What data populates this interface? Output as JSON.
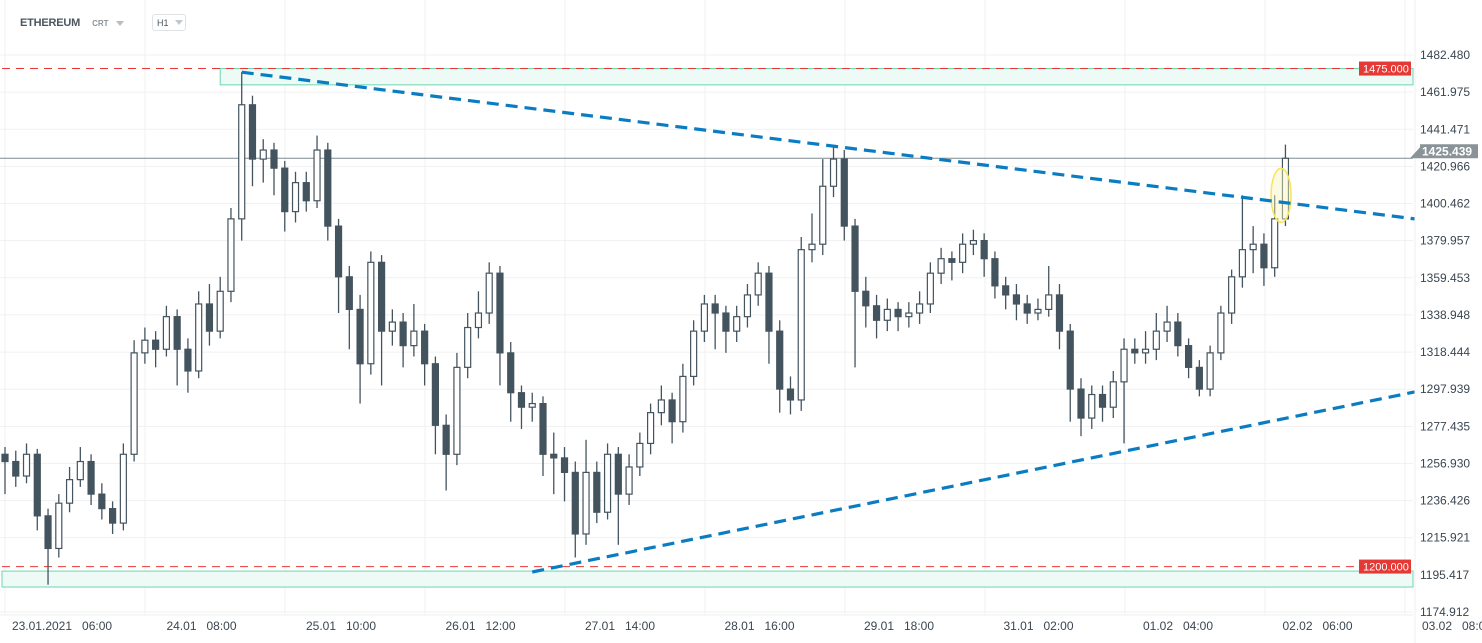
{
  "header": {
    "symbol": "ETHEREUM",
    "market": "CRT",
    "timeframe": "H1"
  },
  "colors": {
    "bull_fill": "#ffffff",
    "candle": "#44545f",
    "trend": "#0a7dc2",
    "level": "#e53935",
    "zone_stroke": "#6fd6b2",
    "zone_fill": "#eefaf5",
    "price_line": "#7f8a91",
    "highlight": "#f5e65a"
  },
  "chart_data": {
    "type": "candlestick",
    "instrument": "ETHEREUM",
    "timeframe": "H1",
    "ylim": [
      1174.912,
      1490
    ],
    "grid": true,
    "yticks": [
      "1482.480",
      "1461.975",
      "1441.471",
      "1420.966",
      "1400.462",
      "1379.957",
      "1359.453",
      "1338.948",
      "1318.444",
      "1297.939",
      "1277.435",
      "1256.930",
      "1236.426",
      "1215.921",
      "1195.417",
      "1174.912"
    ],
    "xticks": [
      "23.01.2021  06:00",
      "24.01  08:00",
      "25.01  10:00",
      "26.01  12:00",
      "27.01  14:00",
      "28.01  16:00",
      "29.01  18:00",
      "31.01  02:00",
      "01.02  04:00",
      "02.02  06:00",
      "03.02  08:00"
    ],
    "candles": [
      [
        1262,
        1266,
        1240,
        1258
      ],
      [
        1258,
        1264,
        1244,
        1250
      ],
      [
        1250,
        1268,
        1246,
        1262
      ],
      [
        1262,
        1265,
        1220,
        1228
      ],
      [
        1228,
        1232,
        1190,
        1210
      ],
      [
        1210,
        1240,
        1205,
        1235
      ],
      [
        1235,
        1255,
        1230,
        1248
      ],
      [
        1248,
        1266,
        1244,
        1258
      ],
      [
        1258,
        1262,
        1234,
        1240
      ],
      [
        1240,
        1246,
        1226,
        1232
      ],
      [
        1232,
        1236,
        1218,
        1224
      ],
      [
        1224,
        1268,
        1220,
        1262
      ],
      [
        1262,
        1325,
        1258,
        1318
      ],
      [
        1318,
        1332,
        1312,
        1325
      ],
      [
        1325,
        1330,
        1310,
        1320
      ],
      [
        1320,
        1344,
        1316,
        1338
      ],
      [
        1338,
        1342,
        1300,
        1320
      ],
      [
        1320,
        1326,
        1296,
        1308
      ],
      [
        1308,
        1352,
        1304,
        1345
      ],
      [
        1345,
        1356,
        1322,
        1330
      ],
      [
        1330,
        1360,
        1326,
        1352
      ],
      [
        1352,
        1398,
        1346,
        1392
      ],
      [
        1392,
        1473,
        1380,
        1455
      ],
      [
        1455,
        1460,
        1410,
        1425
      ],
      [
        1425,
        1436,
        1412,
        1430
      ],
      [
        1430,
        1434,
        1405,
        1420
      ],
      [
        1420,
        1424,
        1385,
        1396
      ],
      [
        1396,
        1418,
        1390,
        1412
      ],
      [
        1412,
        1418,
        1396,
        1402
      ],
      [
        1402,
        1438,
        1398,
        1430
      ],
      [
        1430,
        1434,
        1380,
        1388
      ],
      [
        1388,
        1392,
        1340,
        1360
      ],
      [
        1360,
        1366,
        1320,
        1342
      ],
      [
        1342,
        1350,
        1290,
        1312
      ],
      [
        1312,
        1374,
        1306,
        1368
      ],
      [
        1368,
        1372,
        1300,
        1330
      ],
      [
        1330,
        1342,
        1322,
        1335
      ],
      [
        1335,
        1340,
        1310,
        1322
      ],
      [
        1322,
        1345,
        1316,
        1330
      ],
      [
        1330,
        1334,
        1300,
        1312
      ],
      [
        1312,
        1316,
        1262,
        1278
      ],
      [
        1278,
        1284,
        1242,
        1262
      ],
      [
        1262,
        1318,
        1256,
        1310
      ],
      [
        1310,
        1340,
        1304,
        1332
      ],
      [
        1332,
        1352,
        1326,
        1340
      ],
      [
        1340,
        1368,
        1334,
        1362
      ],
      [
        1362,
        1366,
        1300,
        1318
      ],
      [
        1318,
        1324,
        1280,
        1296
      ],
      [
        1296,
        1300,
        1276,
        1288
      ],
      [
        1288,
        1296,
        1280,
        1290
      ],
      [
        1290,
        1294,
        1250,
        1262
      ],
      [
        1262,
        1274,
        1240,
        1260
      ],
      [
        1260,
        1266,
        1236,
        1252
      ],
      [
        1252,
        1258,
        1205,
        1218
      ],
      [
        1218,
        1270,
        1212,
        1252
      ],
      [
        1252,
        1258,
        1224,
        1230
      ],
      [
        1230,
        1268,
        1226,
        1262
      ],
      [
        1262,
        1266,
        1212,
        1240
      ],
      [
        1240,
        1262,
        1234,
        1255
      ],
      [
        1255,
        1274,
        1250,
        1268
      ],
      [
        1268,
        1290,
        1262,
        1285
      ],
      [
        1285,
        1300,
        1278,
        1292
      ],
      [
        1292,
        1296,
        1268,
        1280
      ],
      [
        1280,
        1312,
        1274,
        1305
      ],
      [
        1305,
        1336,
        1300,
        1330
      ],
      [
        1330,
        1350,
        1324,
        1345
      ],
      [
        1345,
        1350,
        1320,
        1340
      ],
      [
        1340,
        1344,
        1318,
        1330
      ],
      [
        1330,
        1344,
        1324,
        1338
      ],
      [
        1338,
        1356,
        1332,
        1350
      ],
      [
        1350,
        1368,
        1344,
        1362
      ],
      [
        1362,
        1366,
        1312,
        1330
      ],
      [
        1330,
        1336,
        1285,
        1298
      ],
      [
        1298,
        1305,
        1284,
        1292
      ],
      [
        1292,
        1382,
        1286,
        1375
      ],
      [
        1375,
        1395,
        1368,
        1378
      ],
      [
        1378,
        1425,
        1372,
        1410
      ],
      [
        1410,
        1433,
        1404,
        1425
      ],
      [
        1425,
        1430,
        1380,
        1388
      ],
      [
        1388,
        1392,
        1310,
        1352
      ],
      [
        1352,
        1360,
        1332,
        1344
      ],
      [
        1344,
        1350,
        1326,
        1336
      ],
      [
        1336,
        1348,
        1330,
        1342
      ],
      [
        1342,
        1346,
        1330,
        1338
      ],
      [
        1338,
        1346,
        1332,
        1340
      ],
      [
        1340,
        1352,
        1334,
        1345
      ],
      [
        1345,
        1368,
        1340,
        1362
      ],
      [
        1362,
        1376,
        1356,
        1370
      ],
      [
        1370,
        1374,
        1358,
        1368
      ],
      [
        1368,
        1384,
        1362,
        1378
      ],
      [
        1378,
        1386,
        1372,
        1380
      ],
      [
        1380,
        1384,
        1360,
        1370
      ],
      [
        1370,
        1374,
        1348,
        1355
      ],
      [
        1355,
        1360,
        1342,
        1350
      ],
      [
        1350,
        1356,
        1336,
        1345
      ],
      [
        1345,
        1350,
        1334,
        1340
      ],
      [
        1340,
        1348,
        1336,
        1342
      ],
      [
        1342,
        1366,
        1338,
        1350
      ],
      [
        1350,
        1356,
        1320,
        1330
      ],
      [
        1330,
        1334,
        1280,
        1298
      ],
      [
        1298,
        1304,
        1272,
        1282
      ],
      [
        1282,
        1300,
        1276,
        1295
      ],
      [
        1295,
        1300,
        1280,
        1288
      ],
      [
        1288,
        1308,
        1282,
        1302
      ],
      [
        1302,
        1326,
        1268,
        1320
      ],
      [
        1320,
        1326,
        1312,
        1318
      ],
      [
        1318,
        1330,
        1312,
        1320
      ],
      [
        1320,
        1340,
        1314,
        1330
      ],
      [
        1330,
        1344,
        1324,
        1335
      ],
      [
        1335,
        1340,
        1316,
        1322
      ],
      [
        1322,
        1326,
        1304,
        1310
      ],
      [
        1310,
        1314,
        1294,
        1298
      ],
      [
        1298,
        1322,
        1294,
        1318
      ],
      [
        1318,
        1344,
        1314,
        1340
      ],
      [
        1340,
        1364,
        1334,
        1360
      ],
      [
        1360,
        1405,
        1354,
        1375
      ],
      [
        1375,
        1388,
        1362,
        1378
      ],
      [
        1378,
        1384,
        1355,
        1365
      ],
      [
        1365,
        1405,
        1360,
        1392
      ],
      [
        1392,
        1433,
        1388,
        1425.439
      ]
    ],
    "current_price": "1425.439",
    "levels": [
      {
        "price": 1475,
        "label": "1475.000",
        "zone": [
          1466,
          1475
        ],
        "zone_from_candle": 20
      },
      {
        "price": 1200,
        "label": "1200.000",
        "zone": [
          1188.7,
          1197.5
        ],
        "zone_from_candle": 0
      }
    ],
    "trendlines": [
      {
        "from": [
          22,
          1473
        ],
        "to": [
          131,
          1392
        ]
      },
      {
        "from": [
          49,
          1197
        ],
        "to": [
          131,
          1296.4
        ]
      }
    ],
    "highlight_candles": [
      118,
      119
    ]
  }
}
